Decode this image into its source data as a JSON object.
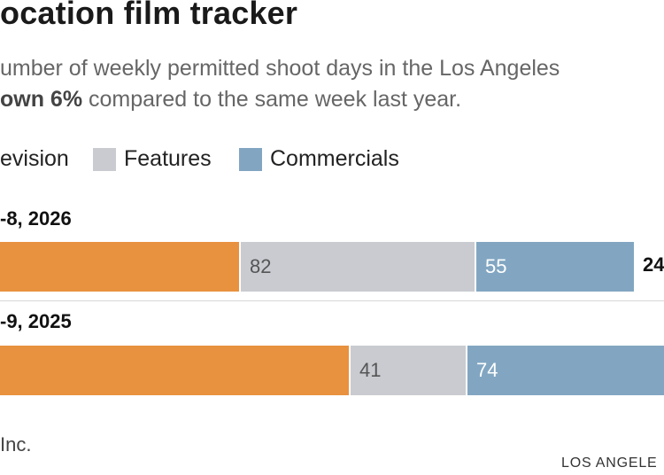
{
  "header": {
    "title": "ocation film tracker",
    "subtitle_line1": "umber of weekly permitted shoot days in the Los Angeles",
    "subtitle_line2_bold": "own 6%",
    "subtitle_line2_rest": " compared to the same week last year."
  },
  "legend": {
    "items": [
      {
        "label": "evision",
        "color": "#e8913f"
      },
      {
        "label": "Features",
        "color": "#c9cbd0"
      },
      {
        "label": "Commercials",
        "color": "#82a6c2"
      }
    ]
  },
  "chart_data": {
    "type": "bar",
    "stacked": true,
    "orientation": "horizontal",
    "categories": [
      "-8, 2026",
      "-9, 2025"
    ],
    "series": [
      {
        "name": "evision",
        "color": "#e8913f",
        "values": [
          null,
          null
        ]
      },
      {
        "name": "Features",
        "color": "#c9cbd0",
        "values": [
          82,
          41
        ]
      },
      {
        "name": "Commercials",
        "color": "#82a6c2",
        "values": [
          55,
          74
        ]
      }
    ],
    "totals": [
      "24",
      null
    ]
  },
  "footer": {
    "source": "Inc.",
    "credit": "LOS ANGELE"
  }
}
